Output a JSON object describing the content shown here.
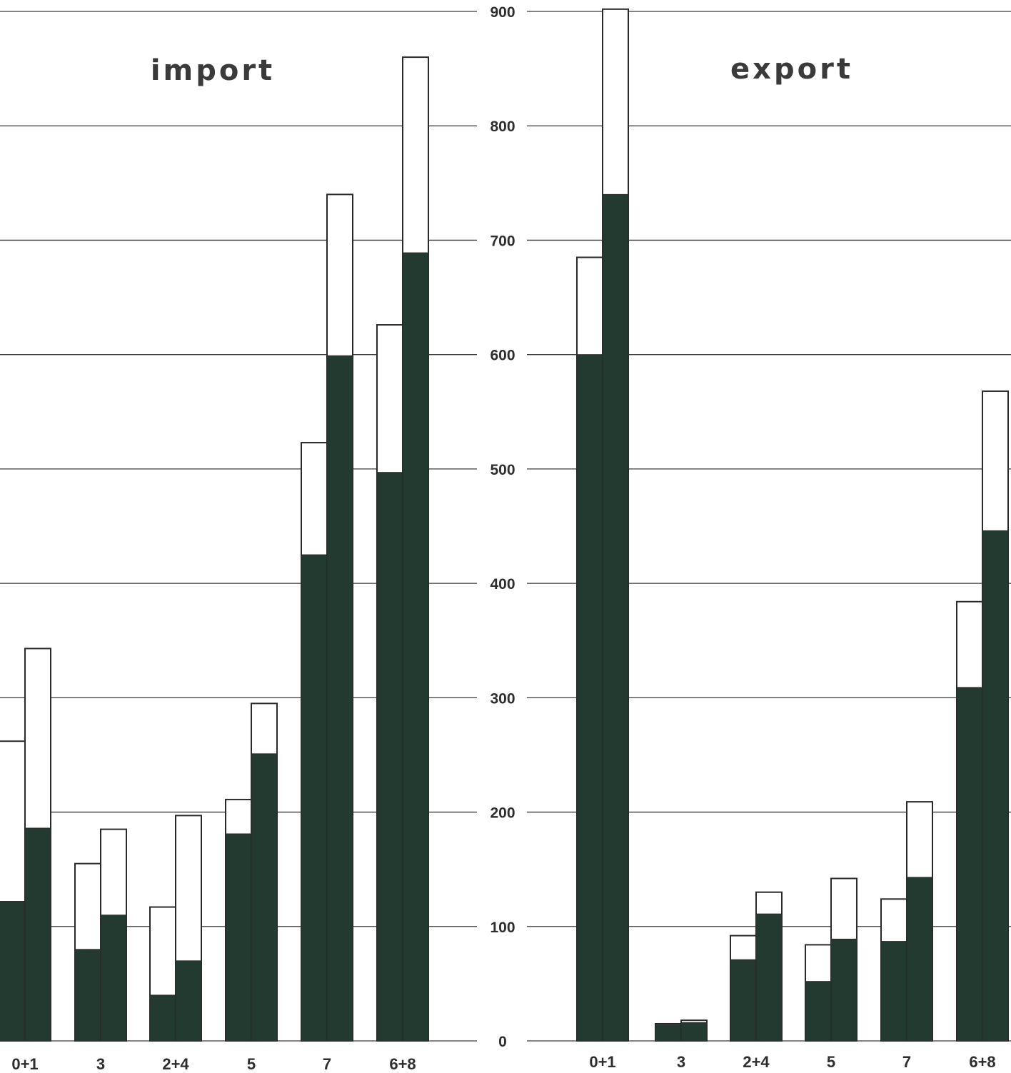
{
  "colors": {
    "filled": "#233a30",
    "outline": "#2a2a2a",
    "grid": "#3a3a3a"
  },
  "chart_data": [
    {
      "type": "bar",
      "title": "import",
      "categories": [
        "0+1",
        "3",
        "2+4",
        "5",
        "7",
        "6+8"
      ],
      "ylim": [
        0,
        900
      ],
      "y_ticks": [],
      "grid": true,
      "bars_per_category": 2,
      "series": [
        {
          "values_total": [
            262,
            155,
            117,
            211,
            523,
            626
          ],
          "values_filled": [
            122,
            80,
            40,
            181,
            425,
            497
          ]
        },
        {
          "values_total": [
            343,
            185,
            197,
            295,
            740,
            860
          ],
          "values_filled": [
            186,
            110,
            70,
            251,
            599,
            689
          ]
        }
      ]
    },
    {
      "type": "bar",
      "title": "export",
      "categories": [
        "0+1",
        "3",
        "2+4",
        "5",
        "7",
        "6+8"
      ],
      "ylim": [
        0,
        900
      ],
      "y_ticks": [
        "0",
        "100",
        "200",
        "300",
        "400",
        "500",
        "600",
        "700",
        "800",
        "900"
      ],
      "grid": true,
      "bars_per_category": 2,
      "series": [
        {
          "values_total": [
            685,
            15,
            92,
            84,
            124,
            384
          ],
          "values_filled": [
            600,
            14,
            71,
            52,
            87,
            309
          ]
        },
        {
          "values_total": [
            902,
            18,
            130,
            142,
            209,
            568
          ],
          "values_filled": [
            740,
            16,
            111,
            89,
            143,
            446
          ]
        }
      ]
    }
  ]
}
